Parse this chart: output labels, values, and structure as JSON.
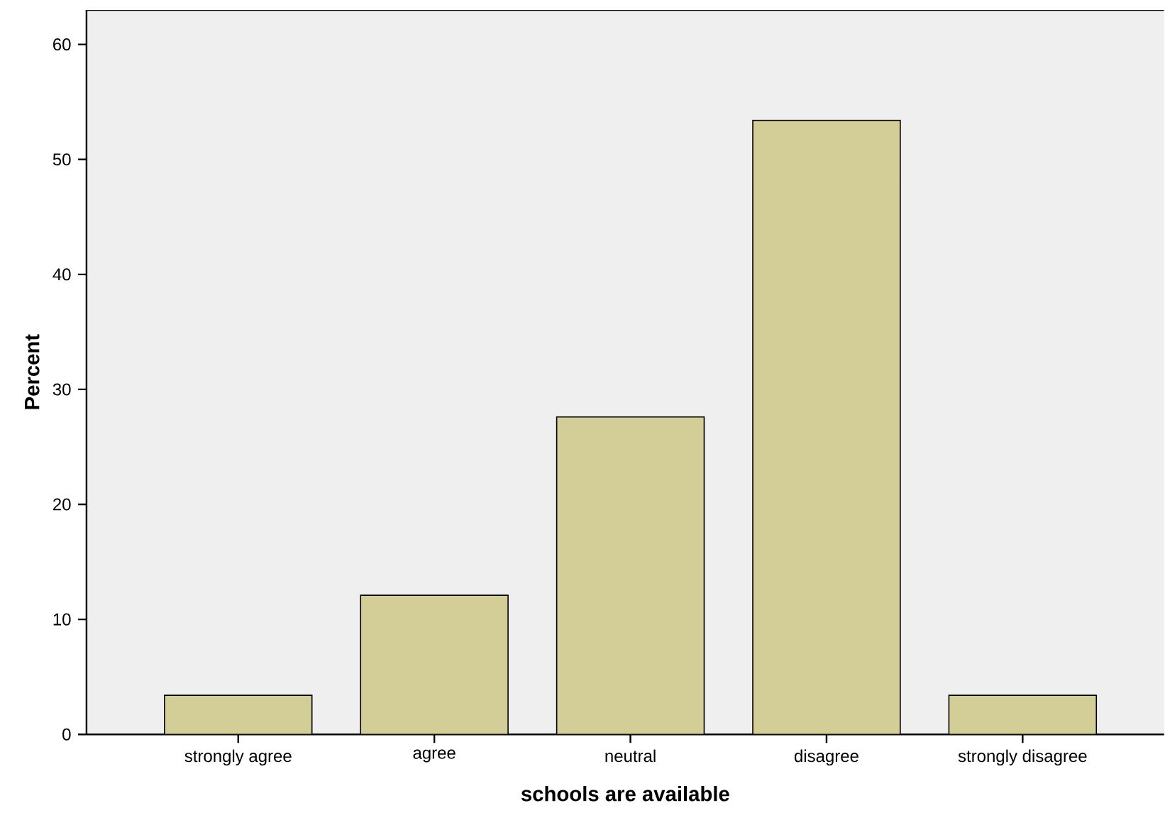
{
  "chart_data": {
    "type": "bar",
    "xlabel": "schools are available",
    "ylabel": "Percent",
    "categories": [
      "strongly agree",
      "agree",
      "neutral",
      "disagree",
      "strongly disagree"
    ],
    "values": [
      3.4,
      12.1,
      27.6,
      53.4,
      3.4
    ],
    "color": "#d3ce97",
    "ylim": [
      0,
      63
    ],
    "yticks": [
      0,
      10,
      20,
      30,
      40,
      50,
      60
    ]
  }
}
